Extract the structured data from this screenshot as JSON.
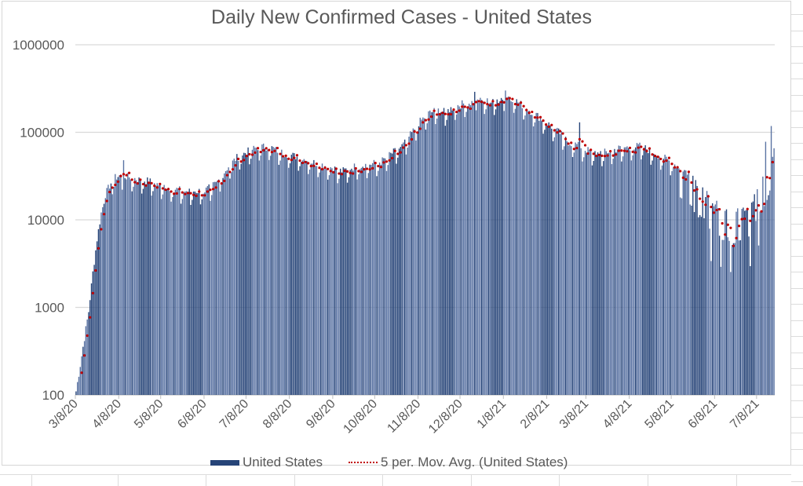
{
  "chart_data": {
    "type": "bar",
    "title": "Daily New Confirmed Cases - United States",
    "xlabel": "",
    "ylabel": "",
    "yscale": "log",
    "ylim": [
      100,
      1000000
    ],
    "yticks": [
      "100",
      "1000",
      "10000",
      "100000",
      "1000000"
    ],
    "ytick_values": [
      100,
      1000,
      10000,
      100000,
      1000000
    ],
    "grid": true,
    "legend_position": "bottom",
    "start_date": "3/8/20",
    "num_days": 500,
    "xticks": [
      {
        "label": "3/8/20",
        "day": 0
      },
      {
        "label": "4/8/20",
        "day": 31
      },
      {
        "label": "5/8/20",
        "day": 61
      },
      {
        "label": "6/8/20",
        "day": 92
      },
      {
        "label": "7/8/20",
        "day": 122
      },
      {
        "label": "8/8/20",
        "day": 153
      },
      {
        "label": "9/8/20",
        "day": 184
      },
      {
        "label": "10/8/20",
        "day": 214
      },
      {
        "label": "11/8/20",
        "day": 245
      },
      {
        "label": "12/8/20",
        "day": 275
      },
      {
        "label": "1/8/21",
        "day": 306
      },
      {
        "label": "2/8/21",
        "day": 337
      },
      {
        "label": "3/8/21",
        "day": 365
      },
      {
        "label": "4/8/21",
        "day": 396
      },
      {
        "label": "5/8/21",
        "day": 426
      },
      {
        "label": "6/8/21",
        "day": 457
      },
      {
        "label": "7/8/21",
        "day": 487
      }
    ],
    "series": [
      {
        "name": "United States",
        "type": "bar",
        "color": "#264478",
        "trend_keyframes": [
          [
            0,
            110
          ],
          [
            3,
            220
          ],
          [
            6,
            450
          ],
          [
            9,
            900
          ],
          [
            12,
            2500
          ],
          [
            15,
            6000
          ],
          [
            18,
            12000
          ],
          [
            21,
            19000
          ],
          [
            24,
            24000
          ],
          [
            27,
            29000
          ],
          [
            31,
            31000
          ],
          [
            38,
            30000
          ],
          [
            45,
            28000
          ],
          [
            52,
            27000
          ],
          [
            61,
            24000
          ],
          [
            70,
            22000
          ],
          [
            80,
            20500
          ],
          [
            92,
            21000
          ],
          [
            100,
            25000
          ],
          [
            108,
            38000
          ],
          [
            115,
            50000
          ],
          [
            122,
            58000
          ],
          [
            130,
            66000
          ],
          [
            138,
            67000
          ],
          [
            146,
            58000
          ],
          [
            153,
            54000
          ],
          [
            160,
            50000
          ],
          [
            170,
            44000
          ],
          [
            180,
            40000
          ],
          [
            190,
            35000
          ],
          [
            200,
            40000
          ],
          [
            210,
            42000
          ],
          [
            218,
            45000
          ],
          [
            226,
            56000
          ],
          [
            234,
            70000
          ],
          [
            240,
            95000
          ],
          [
            245,
            125000
          ],
          [
            252,
            160000
          ],
          [
            258,
            175000
          ],
          [
            264,
            165000
          ],
          [
            270,
            190000
          ],
          [
            276,
            205000
          ],
          [
            284,
            215000
          ],
          [
            292,
            225000
          ],
          [
            298,
            215000
          ],
          [
            304,
            240000
          ],
          [
            310,
            250000
          ],
          [
            316,
            215000
          ],
          [
            322,
            185000
          ],
          [
            330,
            150000
          ],
          [
            338,
            120000
          ],
          [
            346,
            95000
          ],
          [
            352,
            75000
          ],
          [
            358,
            70000
          ],
          [
            364,
            62000
          ],
          [
            372,
            56000
          ],
          [
            380,
            58000
          ],
          [
            388,
            64000
          ],
          [
            396,
            66000
          ],
          [
            404,
            68000
          ],
          [
            412,
            58000
          ],
          [
            420,
            50000
          ],
          [
            428,
            42000
          ],
          [
            436,
            35000
          ],
          [
            442,
            29000
          ],
          [
            448,
            22000
          ],
          [
            454,
            16000
          ],
          [
            460,
            14000
          ],
          [
            468,
            12000
          ],
          [
            476,
            12500
          ],
          [
            482,
            14000
          ],
          [
            486,
            20000
          ],
          [
            490,
            29000
          ],
          [
            494,
            36000
          ],
          [
            497,
            52000
          ],
          [
            499,
            60000
          ]
        ],
        "spikes": [
          {
            "day": 34,
            "value": 48000
          },
          {
            "day": 285,
            "value": 290000
          },
          {
            "day": 307,
            "value": 300000
          },
          {
            "day": 360,
            "value": 130000
          },
          {
            "day": 493,
            "value": 78000
          },
          {
            "day": 497,
            "value": 118000
          }
        ]
      },
      {
        "name": "5 per. Mov. Avg. (United States)",
        "type": "line",
        "style": "dotted",
        "color": "#c00000",
        "period": 5
      }
    ]
  },
  "legend": {
    "items": [
      {
        "label": "United States"
      },
      {
        "label": "5 per. Mov. Avg. (United States)"
      }
    ]
  }
}
